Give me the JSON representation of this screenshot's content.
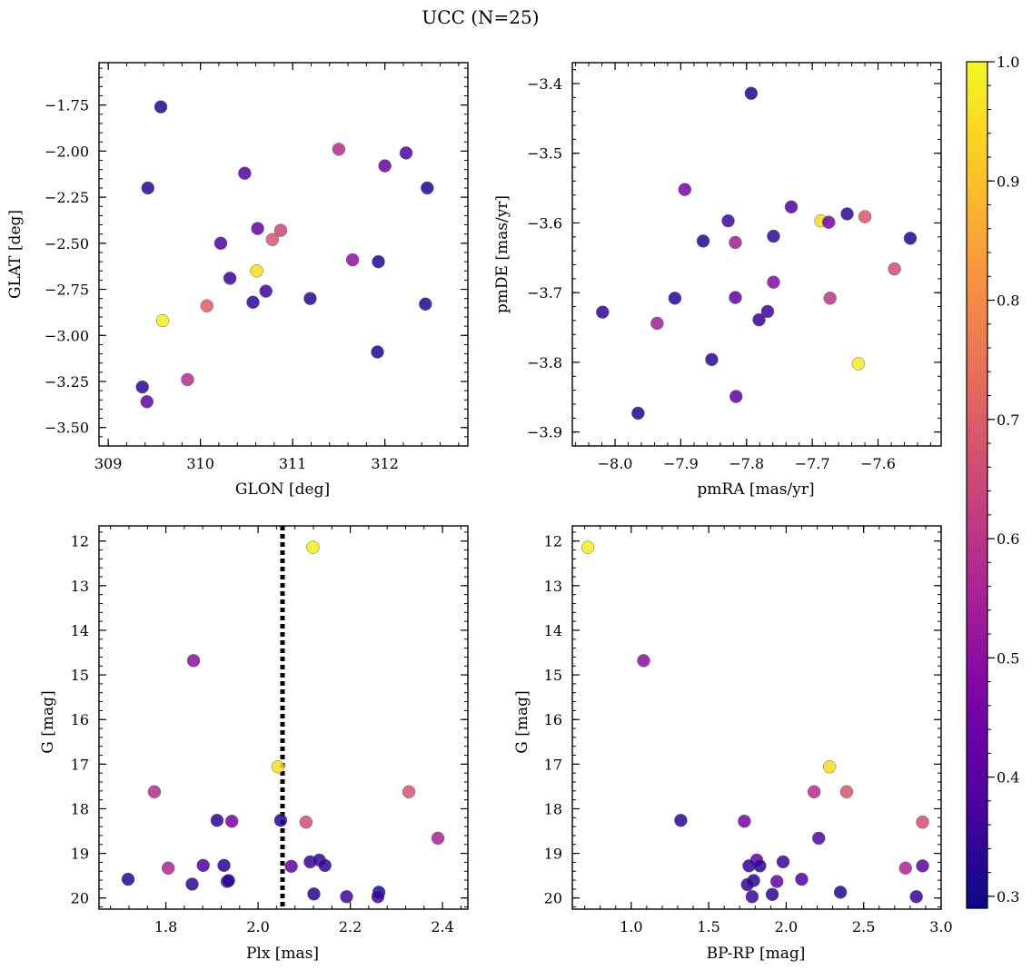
{
  "figure": {
    "title": "UCC (N=25)"
  },
  "colorbar": {
    "colormap": "plasma",
    "min": 0.29,
    "max": 1.0,
    "ticks": [
      0.3,
      0.4,
      0.5,
      0.6,
      0.7,
      0.8,
      0.9,
      1.0
    ],
    "tick_labels": [
      "0.3",
      "0.4",
      "0.5",
      "0.6",
      "0.7",
      "0.8",
      "0.9",
      "1.0"
    ]
  },
  "chart_data": [
    {
      "type": "scatter",
      "xlabel": "GLON [deg]",
      "ylabel": "GLAT [deg]",
      "xlim": [
        308.9,
        312.9
      ],
      "ylim": [
        -3.6,
        -1.52
      ],
      "y_inverted": false,
      "xticks": [
        309,
        310,
        311,
        312
      ],
      "xtick_labels": [
        "309",
        "310",
        "311",
        "312"
      ],
      "yticks": [
        -3.5,
        -3.25,
        -3.0,
        -2.75,
        -2.5,
        -2.25,
        -2.0,
        -1.75
      ],
      "ytick_labels": [
        "−3.50",
        "−3.25",
        "−3.00",
        "−2.75",
        "−2.50",
        "−2.25",
        "−2.00",
        "−1.75"
      ],
      "points": [
        {
          "x": 309.57,
          "y": -1.76,
          "c": 0.32
        },
        {
          "x": 309.43,
          "y": -2.2,
          "c": 0.33
        },
        {
          "x": 309.37,
          "y": -3.28,
          "c": 0.34
        },
        {
          "x": 309.42,
          "y": -3.36,
          "c": 0.42
        },
        {
          "x": 309.59,
          "y": -2.92,
          "c": 0.98
        },
        {
          "x": 309.86,
          "y": -3.24,
          "c": 0.58
        },
        {
          "x": 310.07,
          "y": -2.84,
          "c": 0.7
        },
        {
          "x": 310.22,
          "y": -2.5,
          "c": 0.38
        },
        {
          "x": 310.32,
          "y": -2.69,
          "c": 0.35
        },
        {
          "x": 310.48,
          "y": -2.12,
          "c": 0.39
        },
        {
          "x": 310.57,
          "y": -2.82,
          "c": 0.34
        },
        {
          "x": 310.61,
          "y": -2.65,
          "c": 0.95
        },
        {
          "x": 310.62,
          "y": -2.42,
          "c": 0.42
        },
        {
          "x": 310.71,
          "y": -2.76,
          "c": 0.36
        },
        {
          "x": 310.78,
          "y": -2.48,
          "c": 0.68
        },
        {
          "x": 310.87,
          "y": -2.43,
          "c": 0.64
        },
        {
          "x": 311.19,
          "y": -2.8,
          "c": 0.33
        },
        {
          "x": 311.5,
          "y": -1.99,
          "c": 0.58
        },
        {
          "x": 311.65,
          "y": -2.59,
          "c": 0.5
        },
        {
          "x": 311.93,
          "y": -2.6,
          "c": 0.32
        },
        {
          "x": 311.92,
          "y": -3.09,
          "c": 0.31
        },
        {
          "x": 312.0,
          "y": -2.08,
          "c": 0.43
        },
        {
          "x": 312.23,
          "y": -2.01,
          "c": 0.38
        },
        {
          "x": 312.44,
          "y": -2.83,
          "c": 0.32
        },
        {
          "x": 312.46,
          "y": -2.2,
          "c": 0.32
        }
      ]
    },
    {
      "type": "scatter",
      "xlabel": "pmRA [mas/yr]",
      "ylabel": "pmDE [mas/yr]",
      "xlim": [
        -8.065,
        -7.504
      ],
      "ylim": [
        -3.92,
        -3.37
      ],
      "y_inverted": false,
      "xticks": [
        -8.0,
        -7.9,
        -7.8,
        -7.7,
        -7.6
      ],
      "xtick_labels": [
        "−8.0",
        "−7.9",
        "−7.8",
        "−7.7",
        "−7.6"
      ],
      "yticks": [
        -3.9,
        -3.8,
        -3.7,
        -3.6,
        -3.5,
        -3.4
      ],
      "ytick_labels": [
        "−3.9",
        "−3.8",
        "−3.7",
        "−3.6",
        "−3.5",
        "−3.4"
      ],
      "points": [
        {
          "x": -7.793,
          "y": -3.414,
          "c": 0.32
        },
        {
          "x": -7.894,
          "y": -3.552,
          "c": 0.46
        },
        {
          "x": -7.828,
          "y": -3.597,
          "c": 0.36
        },
        {
          "x": -7.732,
          "y": -3.577,
          "c": 0.38
        },
        {
          "x": -7.866,
          "y": -3.626,
          "c": 0.33
        },
        {
          "x": -7.817,
          "y": -3.628,
          "c": 0.54
        },
        {
          "x": -7.759,
          "y": -3.619,
          "c": 0.34
        },
        {
          "x": -7.687,
          "y": -3.597,
          "c": 0.95
        },
        {
          "x": -7.675,
          "y": -3.599,
          "c": 0.45
        },
        {
          "x": -7.647,
          "y": -3.587,
          "c": 0.34
        },
        {
          "x": -7.62,
          "y": -3.591,
          "c": 0.68
        },
        {
          "x": -7.551,
          "y": -3.622,
          "c": 0.33
        },
        {
          "x": -7.575,
          "y": -3.666,
          "c": 0.66
        },
        {
          "x": -7.909,
          "y": -3.708,
          "c": 0.33
        },
        {
          "x": -7.817,
          "y": -3.707,
          "c": 0.42
        },
        {
          "x": -7.759,
          "y": -3.685,
          "c": 0.48
        },
        {
          "x": -7.673,
          "y": -3.708,
          "c": 0.6
        },
        {
          "x": -8.019,
          "y": -3.728,
          "c": 0.34
        },
        {
          "x": -7.768,
          "y": -3.727,
          "c": 0.35
        },
        {
          "x": -7.781,
          "y": -3.739,
          "c": 0.35
        },
        {
          "x": -7.936,
          "y": -3.744,
          "c": 0.54
        },
        {
          "x": -7.853,
          "y": -3.796,
          "c": 0.33
        },
        {
          "x": -7.63,
          "y": -3.802,
          "c": 0.98
        },
        {
          "x": -7.816,
          "y": -3.849,
          "c": 0.41
        },
        {
          "x": -7.965,
          "y": -3.873,
          "c": 0.32
        }
      ]
    },
    {
      "type": "scatter",
      "xlabel": "Plx [mas]",
      "ylabel": "G [mag]",
      "xlim": [
        1.655,
        2.455
      ],
      "ylim": [
        20.25,
        11.66
      ],
      "y_inverted": true,
      "xticks": [
        1.8,
        2.0,
        2.2,
        2.4
      ],
      "xtick_labels": [
        "1.8",
        "2.0",
        "2.2",
        "2.4"
      ],
      "yticks": [
        12,
        13,
        14,
        15,
        16,
        17,
        18,
        19,
        20
      ],
      "ytick_labels": [
        "12",
        "13",
        "14",
        "15",
        "16",
        "17",
        "18",
        "19",
        "20"
      ],
      "vline": {
        "x": 2.053,
        "style": "dotted"
      },
      "points": [
        {
          "x": 2.119,
          "y": 12.14,
          "c": 0.98
        },
        {
          "x": 1.86,
          "y": 14.68,
          "c": 0.5
        },
        {
          "x": 2.043,
          "y": 17.06,
          "c": 0.95
        },
        {
          "x": 1.775,
          "y": 17.62,
          "c": 0.58
        },
        {
          "x": 2.327,
          "y": 17.62,
          "c": 0.68
        },
        {
          "x": 1.911,
          "y": 18.26,
          "c": 0.33
        },
        {
          "x": 1.943,
          "y": 18.28,
          "c": 0.45
        },
        {
          "x": 2.049,
          "y": 18.26,
          "c": 0.32
        },
        {
          "x": 2.104,
          "y": 18.3,
          "c": 0.66
        },
        {
          "x": 2.39,
          "y": 18.66,
          "c": 0.55
        },
        {
          "x": 2.113,
          "y": 19.19,
          "c": 0.35
        },
        {
          "x": 2.133,
          "y": 19.15,
          "c": 0.34
        },
        {
          "x": 1.881,
          "y": 19.27,
          "c": 0.38
        },
        {
          "x": 1.926,
          "y": 19.27,
          "c": 0.33
        },
        {
          "x": 2.145,
          "y": 19.27,
          "c": 0.34
        },
        {
          "x": 2.072,
          "y": 19.29,
          "c": 0.42
        },
        {
          "x": 1.805,
          "y": 19.33,
          "c": 0.56
        },
        {
          "x": 1.718,
          "y": 19.58,
          "c": 0.33
        },
        {
          "x": 1.933,
          "y": 19.63,
          "c": 0.38
        },
        {
          "x": 1.936,
          "y": 19.61,
          "c": 0.33
        },
        {
          "x": 1.857,
          "y": 19.69,
          "c": 0.34
        },
        {
          "x": 2.262,
          "y": 19.87,
          "c": 0.32
        },
        {
          "x": 2.121,
          "y": 19.91,
          "c": 0.33
        },
        {
          "x": 2.192,
          "y": 19.97,
          "c": 0.36
        },
        {
          "x": 2.26,
          "y": 19.97,
          "c": 0.35
        }
      ]
    },
    {
      "type": "scatter",
      "xlabel": "BP-RP [mag]",
      "ylabel": "G [mag]",
      "xlim": [
        0.62,
        3.0
      ],
      "ylim": [
        20.25,
        11.66
      ],
      "y_inverted": true,
      "xticks": [
        1.0,
        1.5,
        2.0,
        2.5,
        3.0
      ],
      "xtick_labels": [
        "1.0",
        "1.5",
        "2.0",
        "2.5",
        "3.0"
      ],
      "yticks": [
        12,
        13,
        14,
        15,
        16,
        17,
        18,
        19,
        20
      ],
      "ytick_labels": [
        "12",
        "13",
        "14",
        "15",
        "16",
        "17",
        "18",
        "19",
        "20"
      ],
      "points": [
        {
          "x": 0.72,
          "y": 12.14,
          "c": 0.98
        },
        {
          "x": 1.08,
          "y": 14.68,
          "c": 0.5
        },
        {
          "x": 2.28,
          "y": 17.06,
          "c": 0.95
        },
        {
          "x": 2.18,
          "y": 17.62,
          "c": 0.58
        },
        {
          "x": 2.39,
          "y": 17.62,
          "c": 0.68
        },
        {
          "x": 1.32,
          "y": 18.26,
          "c": 0.33
        },
        {
          "x": 1.73,
          "y": 18.28,
          "c": 0.45
        },
        {
          "x": 2.88,
          "y": 18.3,
          "c": 0.66
        },
        {
          "x": 2.21,
          "y": 18.66,
          "c": 0.38
        },
        {
          "x": 1.81,
          "y": 19.15,
          "c": 0.42
        },
        {
          "x": 1.98,
          "y": 19.19,
          "c": 0.35
        },
        {
          "x": 1.76,
          "y": 19.28,
          "c": 0.34
        },
        {
          "x": 1.83,
          "y": 19.28,
          "c": 0.33
        },
        {
          "x": 2.88,
          "y": 19.28,
          "c": 0.4
        },
        {
          "x": 2.77,
          "y": 19.33,
          "c": 0.56
        },
        {
          "x": 1.79,
          "y": 19.61,
          "c": 0.33
        },
        {
          "x": 1.94,
          "y": 19.63,
          "c": 0.42
        },
        {
          "x": 2.1,
          "y": 19.58,
          "c": 0.38
        },
        {
          "x": 1.75,
          "y": 19.7,
          "c": 0.34
        },
        {
          "x": 2.35,
          "y": 19.87,
          "c": 0.32
        },
        {
          "x": 1.91,
          "y": 19.92,
          "c": 0.33
        },
        {
          "x": 1.78,
          "y": 19.97,
          "c": 0.36
        },
        {
          "x": 2.84,
          "y": 19.97,
          "c": 0.35
        }
      ]
    }
  ]
}
